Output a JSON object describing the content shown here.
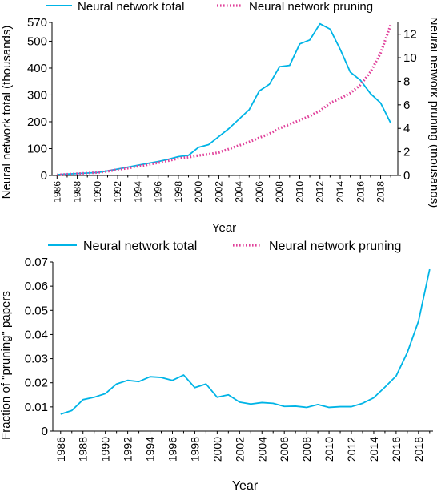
{
  "colors": {
    "total": "#00b4e6",
    "pruning": "#e0409a",
    "axis": "#000000"
  },
  "chart_data": [
    {
      "type": "line",
      "title": "",
      "xlabel": "Year",
      "ylabel": "Neural network total (thousands)",
      "y2label": "Neural network pruning (thousands)",
      "xlim": [
        1985.5,
        2019.7
      ],
      "ylim": [
        0,
        570
      ],
      "y2lim": [
        0,
        13.0
      ],
      "legend_position": "top",
      "x_ticks": [
        "1986",
        "1988",
        "1990",
        "1992",
        "1994",
        "1996",
        "1998",
        "2000",
        "2002",
        "2004",
        "2006",
        "2008",
        "2010",
        "2012",
        "2014",
        "2016",
        "2018"
      ],
      "y_ticks": [
        "0",
        "100",
        "200",
        "300",
        "400",
        "500",
        "570"
      ],
      "y2_ticks": [
        "0",
        "2",
        "4",
        "6",
        "8",
        "10",
        "12"
      ],
      "x": [
        1986,
        1987,
        1988,
        1989,
        1990,
        1991,
        1992,
        1993,
        1994,
        1995,
        1996,
        1997,
        1998,
        1999,
        2000,
        2001,
        2002,
        2003,
        2004,
        2005,
        2006,
        2007,
        2008,
        2009,
        2010,
        2011,
        2012,
        2013,
        2014,
        2015,
        2016,
        2017,
        2018,
        2019
      ],
      "series": [
        {
          "name": "Neural network total",
          "axis": "left",
          "style": "solid",
          "values": [
            3,
            5,
            7,
            9,
            11,
            17,
            24,
            31,
            38,
            45,
            52,
            60,
            70,
            75,
            105,
            115,
            145,
            175,
            210,
            245,
            315,
            340,
            405,
            410,
            490,
            505,
            565,
            545,
            470,
            385,
            355,
            305,
            270,
            195
          ]
        },
        {
          "name": "Neural network pruning",
          "axis": "right",
          "style": "dotted",
          "values": [
            0.05,
            0.1,
            0.15,
            0.2,
            0.25,
            0.35,
            0.5,
            0.62,
            0.78,
            0.92,
            1.08,
            1.25,
            1.45,
            1.55,
            1.7,
            1.8,
            1.95,
            2.25,
            2.55,
            2.85,
            3.2,
            3.55,
            4.0,
            4.35,
            4.7,
            5.05,
            5.5,
            6.15,
            6.55,
            7.0,
            7.7,
            8.8,
            10.4,
            12.8
          ]
        }
      ]
    },
    {
      "type": "line",
      "title": "",
      "xlabel": "Year",
      "ylabel": "Fraction of \"pruning\" papers",
      "xlim": [
        1985.3,
        2019.3
      ],
      "ylim": [
        0,
        0.07
      ],
      "legend_position": "top",
      "x_ticks": [
        "1986",
        "1988",
        "1990",
        "1992",
        "1994",
        "1996",
        "1998",
        "2000",
        "2002",
        "2004",
        "2006",
        "2008",
        "2010",
        "2012",
        "2014",
        "2016",
        "2018"
      ],
      "y_ticks": [
        "0",
        "0.01",
        "0.02",
        "0.03",
        "0.04",
        "0.05",
        "0.06",
        "0.07"
      ],
      "legend": [
        "Neural network total",
        "Neural network pruning"
      ],
      "x": [
        1986,
        1987,
        1988,
        1989,
        1990,
        1991,
        1992,
        1993,
        1994,
        1995,
        1996,
        1997,
        1998,
        1999,
        2000,
        2001,
        2002,
        2003,
        2004,
        2005,
        2006,
        2007,
        2008,
        2009,
        2010,
        2011,
        2012,
        2013,
        2014,
        2015,
        2016,
        2017,
        2018,
        2019
      ],
      "series": [
        {
          "name": "Fraction",
          "style": "solid",
          "values": [
            0.007,
            0.0085,
            0.013,
            0.014,
            0.0155,
            0.0195,
            0.021,
            0.0205,
            0.0225,
            0.0222,
            0.021,
            0.0232,
            0.018,
            0.0195,
            0.014,
            0.015,
            0.012,
            0.0112,
            0.0118,
            0.0115,
            0.0102,
            0.0103,
            0.0098,
            0.011,
            0.0098,
            0.0101,
            0.0101,
            0.0115,
            0.0138,
            0.0182,
            0.0228,
            0.0325,
            0.0455,
            0.067
          ]
        }
      ]
    }
  ]
}
